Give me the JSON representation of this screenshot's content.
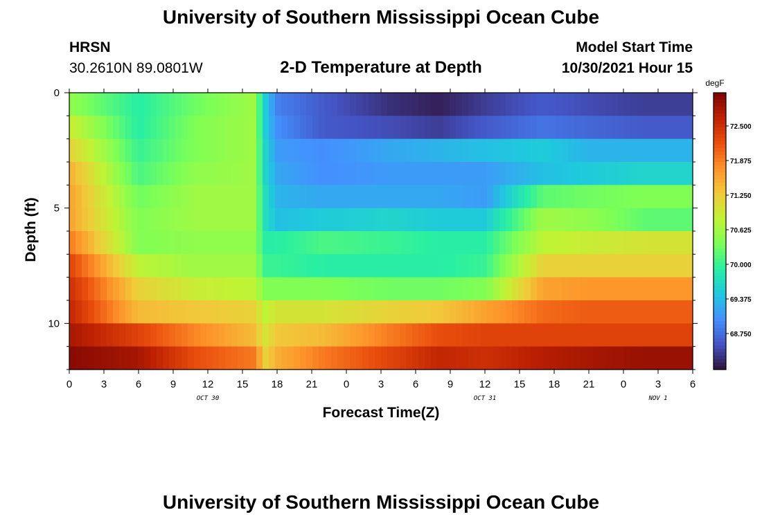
{
  "header": {
    "main_title": "University of Southern Mississippi Ocean Cube",
    "station": "HRSN",
    "coords": "30.2610N  89.0801W",
    "plot_title": "2-D Temperature at Depth",
    "model_start_label": "Model Start Time",
    "model_start_value": "10/30/2021 Hour 15",
    "bottom_title": "University of Southern Mississippi Ocean Cube"
  },
  "chart_data": {
    "type": "heatmap",
    "title": "2-D Temperature at Depth",
    "xlabel": "Forecast Time(Z)",
    "ylabel": "Depth (ft)",
    "x_tick_labels": [
      "0",
      "3",
      "6",
      "9",
      "12",
      "15",
      "18",
      "21",
      "0",
      "3",
      "6",
      "9",
      "12",
      "15",
      "18",
      "21",
      "0",
      "3",
      "6"
    ],
    "x_date_labels": [
      "OCT 30",
      "OCT 31",
      "NOV 1"
    ],
    "y_tick_labels": [
      "0",
      "5",
      "10"
    ],
    "ylim": [
      0,
      12
    ],
    "y_inverted": true,
    "colorbar": {
      "unit": "degF",
      "labels": [
        "72.500",
        "71.875",
        "71.250",
        "70.625",
        "70.000",
        "69.375",
        "68.750"
      ],
      "min": 68.1,
      "max": 73.1,
      "colors": [
        "#30123b",
        "#4454c4",
        "#4490fe",
        "#1fc8de",
        "#29efa2",
        "#7dff56",
        "#c1f334",
        "#f1ca3a",
        "#fe922a",
        "#ea4e0d",
        "#be2102",
        "#7a0403"
      ]
    },
    "depth_levels_ft": [
      0.5,
      1.5,
      2.5,
      3.5,
      4.5,
      5.5,
      6.5,
      7.5,
      8.5,
      9.5,
      10.5,
      11.5
    ],
    "time_hours": [
      0,
      6,
      11,
      16,
      17,
      18,
      22,
      28,
      32,
      36,
      41,
      45,
      50
    ],
    "values": [
      [
        70.5,
        69.9,
        70.3,
        70.6,
        69.5,
        68.9,
        68.6,
        68.3,
        68.2,
        68.4,
        68.6,
        68.5,
        68.4
      ],
      [
        70.9,
        69.9,
        70.4,
        70.6,
        69.5,
        69.0,
        68.6,
        68.5,
        68.4,
        68.6,
        68.8,
        68.7,
        68.6
      ],
      [
        71.2,
        70.0,
        70.4,
        70.6,
        69.6,
        69.1,
        69.0,
        69.2,
        69.3,
        69.4,
        69.5,
        69.3,
        69.3
      ],
      [
        71.5,
        70.1,
        70.5,
        70.6,
        69.6,
        69.2,
        69.0,
        69.1,
        69.1,
        69.1,
        69.4,
        69.5,
        69.6
      ],
      [
        71.6,
        70.3,
        70.6,
        70.6,
        69.7,
        69.3,
        69.2,
        69.2,
        69.2,
        69.1,
        70.2,
        70.3,
        70.4
      ],
      [
        71.6,
        70.4,
        70.6,
        70.6,
        69.7,
        69.4,
        69.5,
        69.6,
        69.5,
        69.5,
        70.6,
        70.5,
        70.2
      ],
      [
        71.9,
        70.4,
        70.5,
        70.5,
        69.9,
        69.9,
        70.1,
        70.0,
        69.9,
        69.9,
        70.8,
        70.9,
        71.0
      ],
      [
        72.3,
        70.8,
        70.6,
        70.6,
        70.0,
        70.0,
        69.9,
        69.9,
        69.9,
        70.0,
        71.2,
        71.2,
        71.2
      ],
      [
        72.5,
        71.2,
        70.9,
        70.8,
        70.4,
        70.4,
        70.4,
        70.3,
        70.3,
        70.4,
        71.6,
        71.7,
        71.7
      ],
      [
        72.6,
        71.4,
        71.3,
        71.2,
        70.8,
        71.0,
        71.0,
        71.2,
        71.3,
        71.6,
        72.0,
        72.1,
        72.1
      ],
      [
        72.8,
        72.3,
        71.8,
        71.4,
        71.0,
        71.3,
        71.4,
        71.9,
        72.2,
        72.3,
        72.3,
        72.3,
        72.3
      ],
      [
        73.0,
        72.8,
        72.2,
        71.9,
        71.2,
        71.5,
        71.9,
        72.3,
        72.6,
        72.5,
        72.7,
        72.8,
        72.9
      ]
    ]
  }
}
